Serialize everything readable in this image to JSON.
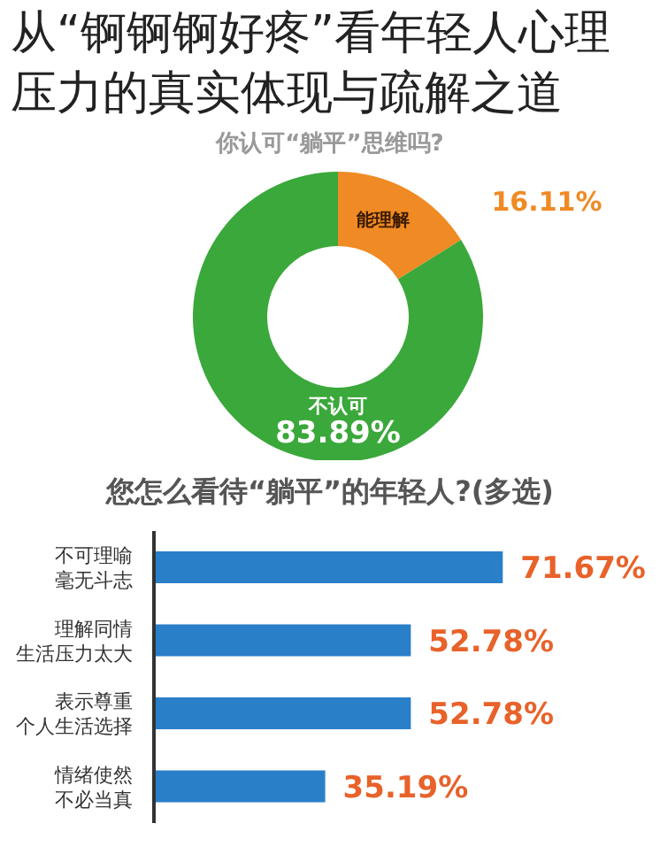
{
  "chart_data": [
    {
      "type": "donut",
      "title": "从“锕锕锕好疼”看年轻人心理压力的真实体现与疏解之道",
      "subtitle": "你认可“躺平”思维吗?",
      "categories": [
        "能理解",
        "不认可"
      ],
      "values": [
        16.11,
        83.89
      ],
      "value_labels": [
        "16.11%",
        "83.89%"
      ],
      "colors": [
        "#f08a24",
        "#3aa83a"
      ]
    },
    {
      "type": "bar",
      "orientation": "horizontal",
      "title": "您怎么看待“躺平”的年轻人?(多选)",
      "categories": [
        "不可理喻毫无斗志",
        "理解同情生活压力太大",
        "表示尊重个人生活选择",
        "情绪使然不必当真"
      ],
      "values": [
        71.67,
        52.78,
        52.78,
        35.19
      ],
      "value_labels": [
        "71.67%",
        "52.78%",
        "52.78%",
        "35.19%"
      ],
      "color": "#2a7fc9"
    }
  ]
}
